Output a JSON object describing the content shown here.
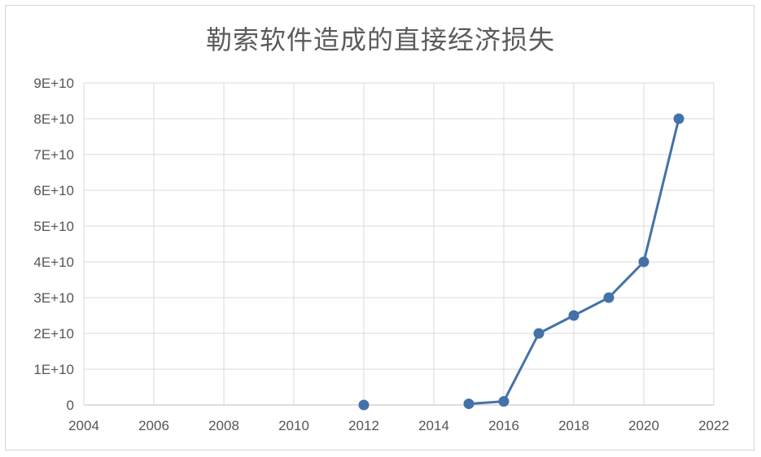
{
  "chart_data": {
    "type": "scatter",
    "title": "勒索软件造成的直接经济损失",
    "xlabel": "",
    "ylabel": "",
    "xlim": [
      2004,
      2022
    ],
    "ylim": [
      0,
      90000000000
    ],
    "x_ticks": [
      "2004",
      "2006",
      "2008",
      "2010",
      "2012",
      "2014",
      "2016",
      "2018",
      "2020",
      "2022"
    ],
    "y_ticks": [
      "0",
      "1E+10",
      "2E+10",
      "3E+10",
      "4E+10",
      "5E+10",
      "6E+10",
      "7E+10",
      "8E+10",
      "9E+10"
    ],
    "grid": true,
    "legend": "none",
    "series": [
      {
        "color": "#4472a8",
        "points": [
          {
            "x": 2012,
            "y": 0
          },
          {
            "x": 2015,
            "y": 325000000
          },
          {
            "x": 2016,
            "y": 1000000000
          },
          {
            "x": 2017,
            "y": 20000000000
          },
          {
            "x": 2018,
            "y": 25000000000
          },
          {
            "x": 2019,
            "y": 30000000000
          },
          {
            "x": 2020,
            "y": 40000000000
          },
          {
            "x": 2021,
            "y": 80000000000
          }
        ],
        "line_segments": [
          [
            1,
            7
          ]
        ]
      }
    ]
  }
}
